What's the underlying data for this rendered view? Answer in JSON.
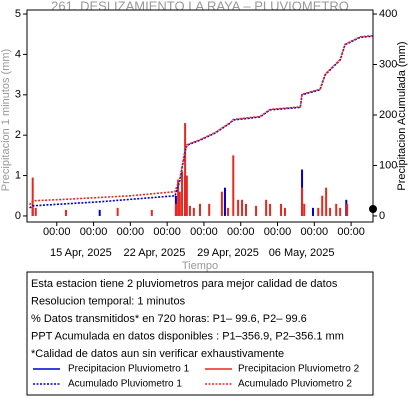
{
  "chart_data": {
    "type": "bar-line",
    "title": "261. DESLIZAMIENTO LA RAYA – PLUVIOMETRO",
    "x_label": "Tiempo",
    "y_label": "Precipitacion 1 minutos (mm)",
    "y2_label": "Precipitacion Acumulada (mm)",
    "xlim": [
      "2025-04-09 21:00",
      "2025-05-12 19:00"
    ],
    "xticks": [
      {
        "value": "2025-04-12 17:00",
        "label": "00:00"
      },
      {
        "value": "2025-04-16 05:00",
        "label": "00:00"
      },
      {
        "value": "2025-04-19 17:00",
        "label": "00:00"
      },
      {
        "value": "2025-04-23 05:00",
        "label": "00:00"
      },
      {
        "value": "2025-04-26 17:00",
        "label": "00:00"
      },
      {
        "value": "2025-04-30 05:00",
        "label": "00:00"
      },
      {
        "value": "2025-05-03 17:00",
        "label": "00:00"
      },
      {
        "value": "2025-05-07 05:00",
        "label": "00:00"
      },
      {
        "value": "2025-05-10 17:00",
        "label": "00:00"
      }
    ],
    "date_ticks": [
      {
        "value": "2025-04-15 00:00",
        "label": "15 Apr, 2025"
      },
      {
        "value": "2025-04-22 00:00",
        "label": "22 Apr, 2025"
      },
      {
        "value": "2025-04-29 00:00",
        "label": "29 Apr, 2025"
      },
      {
        "value": "2025-05-06 00:00",
        "label": "06 May, 2025"
      }
    ],
    "ylim": [
      -0.15,
      5.1
    ],
    "yticks": [
      0,
      1,
      2,
      3,
      4,
      5
    ],
    "y2lim": [
      -12,
      408
    ],
    "y2ticks": [
      0,
      100,
      200,
      300,
      400
    ],
    "series": [
      {
        "name": "Precipitacion Pluviometro 1",
        "color": "#0000cc",
        "kind": "bar",
        "x": [
          "2025-04-10 10:00",
          "2025-04-16 19:00",
          "2025-04-24 01:00",
          "2025-04-24 22:00",
          "2025-04-28 17:00",
          "2025-05-06 01:00",
          "2025-05-07 02:00",
          "2025-05-10 06:00"
        ],
        "values": [
          0.2,
          0.15,
          0.5,
          1.0,
          0.7,
          1.15,
          0.2,
          0.4
        ]
      },
      {
        "name": "Precipitacion Pluviometro 2",
        "color": "#e8281e",
        "kind": "bar",
        "x": [
          "2025-04-10 10:00",
          "2025-04-10 17:00",
          "2025-04-13 14:00",
          "2025-04-18 12:00",
          "2025-04-21 18:00",
          "2025-04-24 01:00",
          "2025-04-24 06:00",
          "2025-04-24 10:00",
          "2025-04-24 15:00",
          "2025-04-24 22:00",
          "2025-04-25 02:00",
          "2025-04-25 09:00",
          "2025-04-25 18:00",
          "2025-04-26 08:00",
          "2025-04-27 05:00",
          "2025-04-28 10:00",
          "2025-04-29 00:00",
          "2025-04-29 12:00",
          "2025-04-29 23:00",
          "2025-04-30 08:00",
          "2025-04-30 17:00",
          "2025-05-01 16:00",
          "2025-05-02 15:00",
          "2025-05-03 00:00",
          "2025-05-04 01:00",
          "2025-05-04 10:00",
          "2025-05-06 01:00",
          "2025-05-06 06:00",
          "2025-05-07 14:00",
          "2025-05-07 23:00",
          "2025-05-08 08:00",
          "2025-05-08 17:00",
          "2025-05-09 07:00",
          "2025-05-09 16:00",
          "2025-05-10 08:00"
        ],
        "values": [
          0.95,
          0.2,
          0.15,
          0.2,
          0.15,
          0.3,
          0.9,
          0.6,
          1.1,
          2.3,
          1.0,
          0.25,
          0.2,
          0.3,
          0.3,
          0.6,
          0.2,
          1.5,
          0.4,
          0.4,
          0.3,
          0.25,
          0.4,
          0.3,
          0.3,
          0.2,
          0.7,
          0.3,
          0.2,
          0.5,
          0.7,
          0.2,
          0.3,
          0.2,
          0.3
        ]
      },
      {
        "name": "Acumulado Pluviometro 1",
        "color": "#0000cc",
        "kind": "line",
        "axis": "y2",
        "x": [
          "2025-04-10 03:00",
          "2025-04-10 10:00",
          "2025-04-16 19:00",
          "2025-04-23 23:00",
          "2025-04-24 10:00",
          "2025-04-24 22:00",
          "2025-04-25 02:00",
          "2025-04-26 08:00",
          "2025-04-27 18:00",
          "2025-04-29 05:00",
          "2025-04-29 12:00",
          "2025-05-02 01:00",
          "2025-05-03 00:00",
          "2025-05-05 21:00",
          "2025-05-06 01:00",
          "2025-05-07 18:00",
          "2025-05-08 06:00",
          "2025-05-09 16:00",
          "2025-05-10 03:00",
          "2025-05-11 14:00",
          "2025-05-12 19:00"
        ],
        "values": [
          16,
          20,
          28,
          40,
          70,
          128,
          140,
          150,
          164,
          184,
          190,
          196,
          210,
          215,
          240,
          250,
          280,
          309,
          339,
          354,
          356
        ]
      },
      {
        "name": "Acumulado Pluviometro 2",
        "color": "#e8281e",
        "kind": "line",
        "axis": "y2",
        "x": [
          "2025-04-10 03:00",
          "2025-04-10 10:00",
          "2025-04-13 14:00",
          "2025-04-19 16:00",
          "2025-04-23 23:00",
          "2025-04-24 10:00",
          "2025-04-24 22:00",
          "2025-04-25 02:00",
          "2025-04-26 08:00",
          "2025-04-27 18:00",
          "2025-04-29 05:00",
          "2025-04-29 12:00",
          "2025-05-02 01:00",
          "2025-05-03 00:00",
          "2025-05-05 21:00",
          "2025-05-06 01:00",
          "2025-05-07 18:00",
          "2025-05-08 06:00",
          "2025-05-09 16:00",
          "2025-05-10 03:00",
          "2025-05-11 14:00",
          "2025-05-12 19:00"
        ],
        "values": [
          22,
          30,
          33,
          40,
          48,
          75,
          130,
          141,
          151,
          165,
          185,
          191,
          197,
          211,
          216,
          241,
          251,
          281,
          310,
          340,
          355,
          357
        ]
      }
    ],
    "notes": [
      "Esta estacion tiene 2 pluviometros para mejor calidad de datos",
      "Resolucion temporal: 1 minutos",
      "% Datos transmitidos* en 720 horas: P1– 99.6, P2– 99.6",
      "PPT Acumulada en datos disponibles : P1–356.9, P2–356.1 mm",
      "*Calidad de datos aun sin verificar exhaustivamente"
    ]
  }
}
